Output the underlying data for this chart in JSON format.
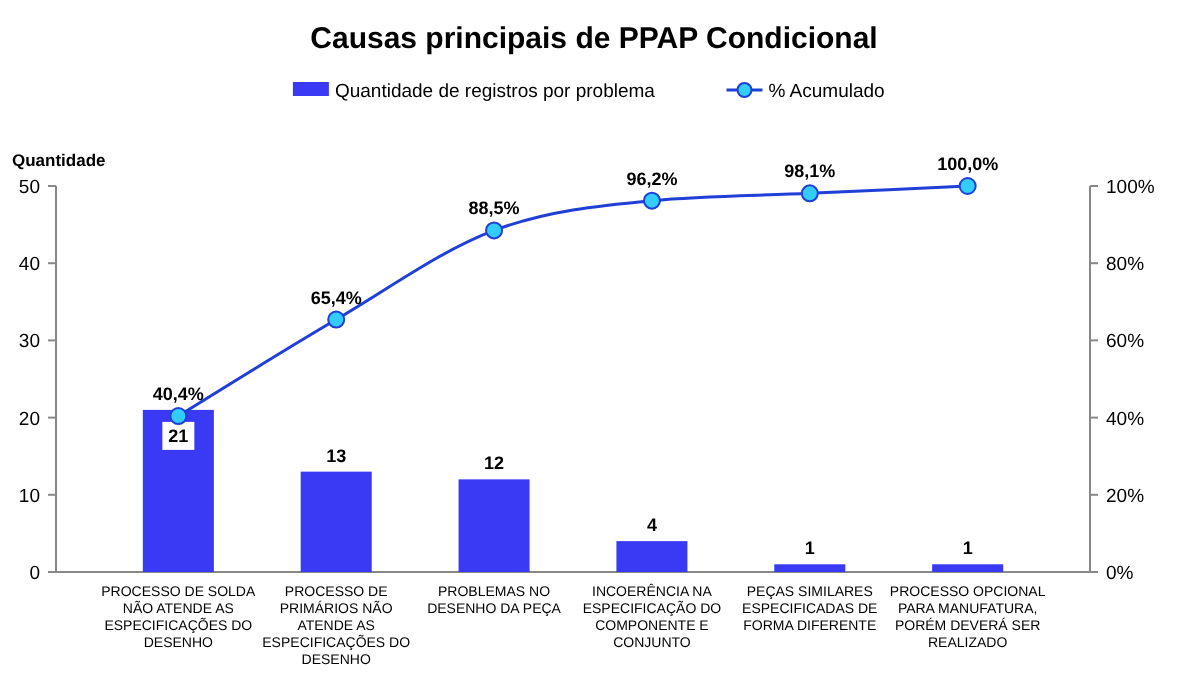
{
  "chart_data": {
    "type": "bar",
    "title": "Causas principais de PPAP Condicional",
    "ylabel": "Quantidade",
    "categories": [
      "PROCESSO DE SOLDA NÃO ATENDE AS ESPECIFICAÇÕES DO DESENHO",
      "PROCESSO DE PRIMÁRIOS NÃO ATENDE AS ESPECIFICAÇÕES DO DESENHO",
      "PROBLEMAS NO DESENHO DA PEÇA",
      "INCOERÊNCIA NA ESPECIFICAÇÃO DO COMPONENTE E CONJUNTO",
      "PEÇAS SIMILARES ESPECIFICADAS DE FORMA DIFERENTE",
      "PROCESSO OPCIONAL PARA MANUFATURA, PORÉM DEVERÁ SER REALIZADO"
    ],
    "series": [
      {
        "name": "Quantidade de registros por problema",
        "color": "#3a3af5",
        "values": [
          21,
          13,
          12,
          4,
          1,
          1
        ]
      },
      {
        "name": "% Acumulado",
        "type": "line",
        "axis": "y2",
        "color": "#1f3fd6",
        "values": [
          40.4,
          65.4,
          88.5,
          96.2,
          98.1,
          100
        ],
        "value_labels": [
          "40,4%",
          "65,4%",
          "88,5%",
          "96,2%",
          "98,1%",
          "100,0%"
        ]
      }
    ],
    "ylim": [
      0,
      50
    ],
    "yticks": [
      0,
      10,
      20,
      30,
      40,
      50
    ],
    "y2lim": [
      0,
      100
    ],
    "y2ticks": [
      {
        "value": 0,
        "label": "0%"
      },
      {
        "value": 20,
        "label": "20%"
      },
      {
        "value": 40,
        "label": "40%"
      },
      {
        "value": 60,
        "label": "60%"
      },
      {
        "value": 80,
        "label": "80%"
      },
      {
        "value": 100,
        "label": "100%"
      }
    ],
    "data_labels": true,
    "legend": "top",
    "marker": "circle",
    "line_style": "solid"
  }
}
